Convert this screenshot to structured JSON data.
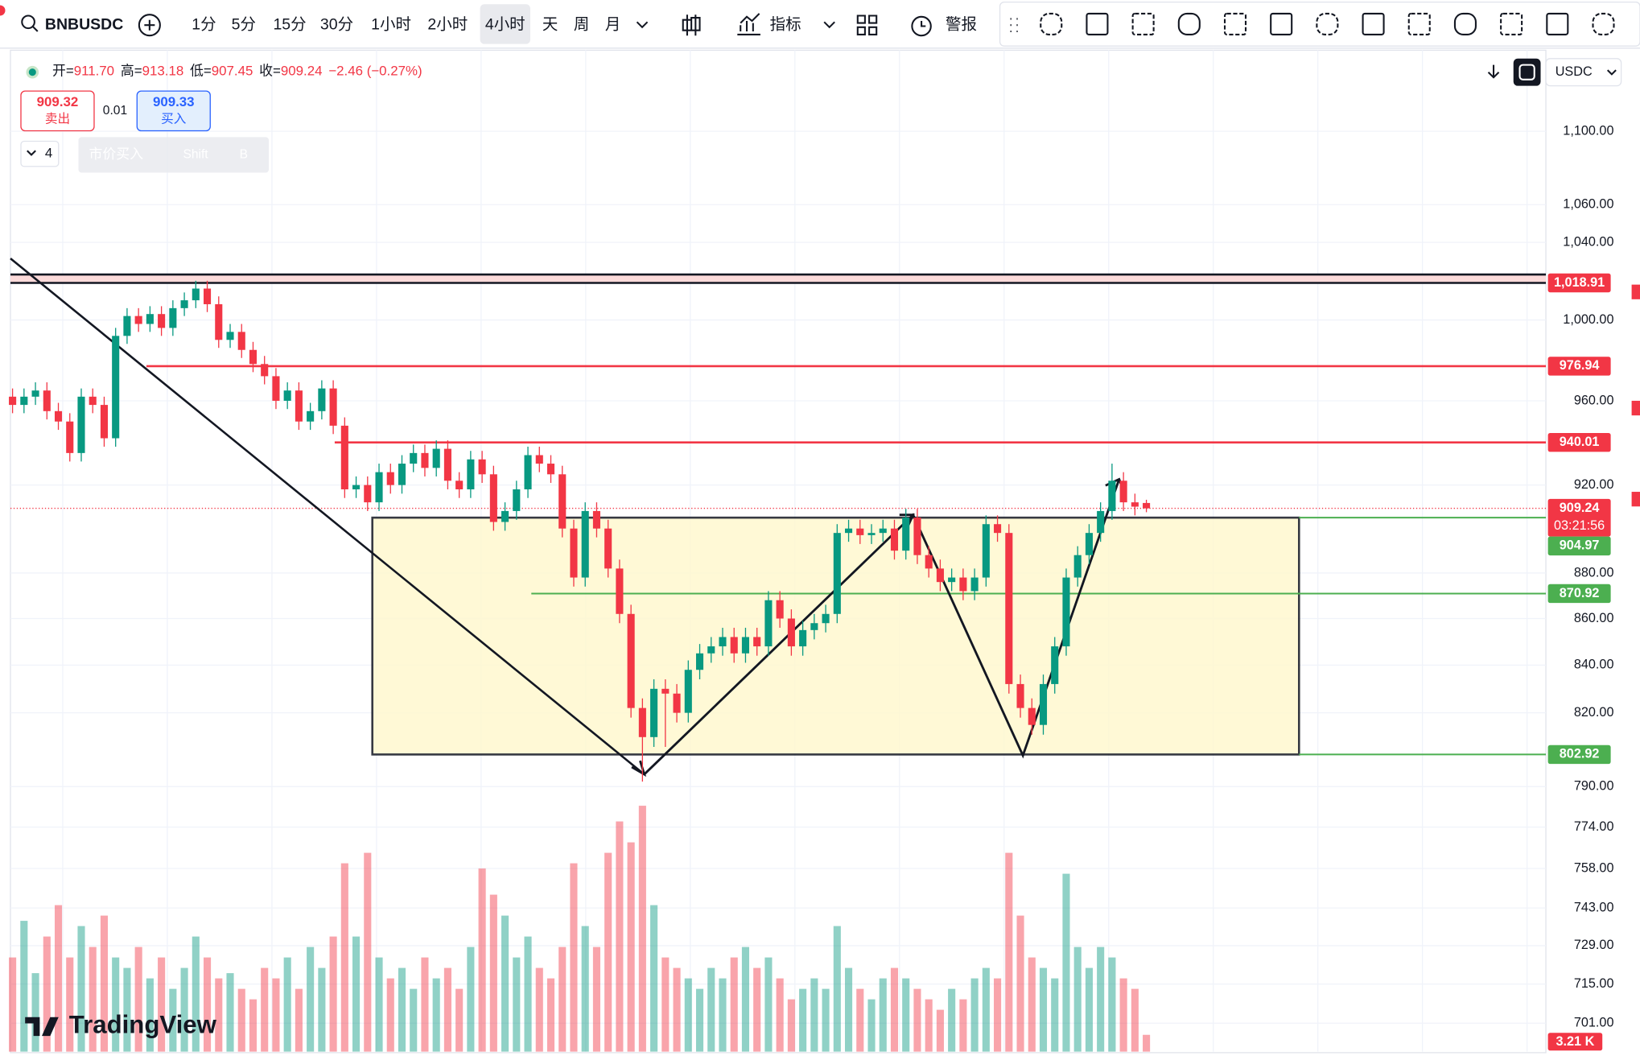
{
  "toolbar": {
    "symbol": "BNBUSDC",
    "timeframes": [
      "1分",
      "5分",
      "15分",
      "30分",
      "1小时",
      "2小时",
      "4小时",
      "天",
      "周",
      "月"
    ],
    "active": 6,
    "indicators": "指标",
    "alerts": "警报"
  },
  "legend": {
    "items": [
      {
        "k": "开=",
        "v": "911.70"
      },
      {
        "k": "高=",
        "v": "913.18"
      },
      {
        "k": "低=",
        "v": "907.45"
      },
      {
        "k": "收=",
        "v": "909.24"
      }
    ],
    "change": "−2.46 (−0.27%)"
  },
  "trade": {
    "sell_price": "909.32",
    "sell": "卖出",
    "qty": "0.01",
    "buy_price": "909.33",
    "buy": "买入",
    "lots": "4",
    "tip": "市价买入",
    "key1": "Shift",
    "key2": "B"
  },
  "currency": "USDC",
  "brand": "TradingView",
  "chart_data": {
    "type": "candlestick",
    "log_scale": true,
    "grid": true,
    "up_color": "#089981",
    "down_color": "#f23645",
    "ylim": [
      691,
      1146
    ],
    "yticks": [
      {
        "value": 1100,
        "label": "1,100.00"
      },
      {
        "value": 1060,
        "label": "1,060.00"
      },
      {
        "value": 1040,
        "label": "1,040.00"
      },
      {
        "value": 1000,
        "label": "1,000.00"
      },
      {
        "value": 960,
        "label": "960.00"
      },
      {
        "value": 920,
        "label": "920.00"
      },
      {
        "value": 880,
        "label": "880.00"
      },
      {
        "value": 860,
        "label": "860.00"
      },
      {
        "value": 840,
        "label": "840.00"
      },
      {
        "value": 820,
        "label": "820.00"
      },
      {
        "value": 790,
        "label": "790.00"
      },
      {
        "value": 774,
        "label": "774.00"
      },
      {
        "value": 758,
        "label": "758.00"
      },
      {
        "value": 743,
        "label": "743.00"
      },
      {
        "value": 729,
        "label": "729.00"
      },
      {
        "value": 715,
        "label": "715.00"
      },
      {
        "value": 701,
        "label": "701.00"
      }
    ],
    "open": [
      962,
      958,
      962,
      965,
      955,
      950,
      935,
      962,
      958,
      942,
      992,
      1002,
      998,
      1003,
      996,
      1006,
      1010,
      1016,
      1008,
      990,
      994,
      985,
      978,
      972,
      960,
      965,
      950,
      955,
      966,
      948,
      918,
      920,
      912,
      926,
      920,
      930,
      935,
      928,
      937,
      922,
      918,
      932,
      925,
      903,
      908,
      918,
      934,
      930,
      925,
      900,
      878,
      908,
      900,
      882,
      862,
      822,
      810,
      830,
      828,
      820,
      838,
      845,
      848,
      852,
      845,
      852,
      848,
      868,
      860,
      848,
      855,
      858,
      862,
      898,
      900,
      897,
      898,
      900,
      890,
      905,
      888,
      882,
      876,
      878,
      872,
      878,
      902,
      898,
      832,
      822,
      815,
      832,
      848,
      878,
      888,
      898,
      908,
      922,
      912,
      911.7
    ],
    "high": [
      966,
      966,
      969,
      969,
      959,
      954,
      966,
      966,
      962,
      996,
      1006,
      1006,
      1007,
      1007,
      1010,
      1014,
      1020,
      1020,
      1012,
      998,
      998,
      989,
      982,
      976,
      969,
      969,
      959,
      970,
      970,
      952,
      924,
      924,
      930,
      930,
      934,
      939,
      939,
      941,
      941,
      926,
      936,
      936,
      929,
      912,
      922,
      938,
      938,
      934,
      929,
      904,
      912,
      912,
      904,
      886,
      866,
      826,
      834,
      834,
      832,
      842,
      849,
      852,
      856,
      856,
      856,
      856,
      872,
      872,
      864,
      859,
      862,
      866,
      902,
      904,
      904,
      902,
      904,
      904,
      909,
      909,
      892,
      886,
      882,
      882,
      882,
      906,
      906,
      902,
      836,
      826,
      836,
      852,
      882,
      892,
      902,
      912,
      930,
      926,
      916,
      913.18
    ],
    "low": [
      954,
      954,
      958,
      951,
      946,
      931,
      931,
      954,
      938,
      938,
      988,
      994,
      994,
      992,
      992,
      1002,
      1006,
      1004,
      986,
      986,
      981,
      974,
      968,
      956,
      956,
      946,
      946,
      951,
      944,
      914,
      914,
      908,
      908,
      916,
      916,
      926,
      924,
      924,
      918,
      914,
      914,
      921,
      899,
      899,
      904,
      914,
      926,
      921,
      896,
      874,
      874,
      896,
      878,
      858,
      818,
      792,
      806,
      806,
      816,
      816,
      834,
      841,
      844,
      841,
      841,
      844,
      844,
      856,
      844,
      844,
      851,
      854,
      858,
      894,
      893,
      893,
      894,
      886,
      886,
      884,
      878,
      872,
      872,
      868,
      868,
      874,
      894,
      828,
      818,
      811,
      811,
      828,
      844,
      874,
      884,
      894,
      904,
      908,
      906,
      907.45
    ],
    "close": [
      958,
      962,
      965,
      955,
      950,
      935,
      962,
      958,
      942,
      992,
      1002,
      998,
      1003,
      996,
      1006,
      1010,
      1016,
      1008,
      990,
      994,
      985,
      978,
      972,
      960,
      965,
      950,
      955,
      966,
      948,
      918,
      920,
      912,
      926,
      920,
      930,
      935,
      928,
      937,
      922,
      918,
      932,
      925,
      903,
      908,
      918,
      934,
      930,
      925,
      900,
      878,
      908,
      900,
      882,
      862,
      822,
      810,
      830,
      828,
      820,
      838,
      845,
      848,
      852,
      845,
      852,
      848,
      868,
      860,
      848,
      855,
      858,
      862,
      898,
      900,
      897,
      898,
      900,
      890,
      905,
      888,
      882,
      876,
      878,
      872,
      878,
      902,
      898,
      832,
      822,
      815,
      832,
      848,
      878,
      888,
      898,
      908,
      922,
      912,
      910,
      909.24
    ],
    "volume": {
      "ylim": [
        0,
        50
      ],
      "last_label": "3.21 K",
      "values": [
        18,
        25,
        15,
        22,
        28,
        18,
        24,
        20,
        26,
        18,
        16,
        20,
        14,
        18,
        12,
        16,
        22,
        18,
        14,
        15,
        12,
        10,
        16,
        14,
        18,
        12,
        20,
        16,
        22,
        36,
        22,
        38,
        18,
        14,
        16,
        12,
        18,
        14,
        16,
        12,
        20,
        35,
        30,
        26,
        18,
        22,
        16,
        14,
        20,
        36,
        24,
        20,
        38,
        44,
        40,
        47,
        28,
        18,
        16,
        14,
        12,
        16,
        14,
        18,
        20,
        16,
        18,
        14,
        10,
        12,
        14,
        12,
        24,
        16,
        12,
        10,
        14,
        16,
        14,
        12,
        10,
        8,
        12,
        10,
        14,
        16,
        14,
        38,
        26,
        18,
        16,
        14,
        34,
        20,
        16,
        20,
        18,
        14,
        12,
        3.21
      ]
    },
    "price_lines": [
      {
        "value": 1018.91,
        "label": "1,018.91",
        "color": "#f23645"
      },
      {
        "value": 976.94,
        "label": "976.94",
        "color": "#f23645"
      },
      {
        "value": 940.01,
        "label": "940.01",
        "color": "#f23645"
      },
      {
        "value": 904.97,
        "label": "904.97",
        "color": "#4caf50"
      },
      {
        "value": 870.92,
        "label": "870.92",
        "color": "#4caf50"
      },
      {
        "value": 802.92,
        "label": "802.92",
        "color": "#4caf50"
      }
    ],
    "last_price": {
      "value": 909.24,
      "label": "909.24",
      "countdown": "03:21:56",
      "color": "#f23645"
    }
  }
}
